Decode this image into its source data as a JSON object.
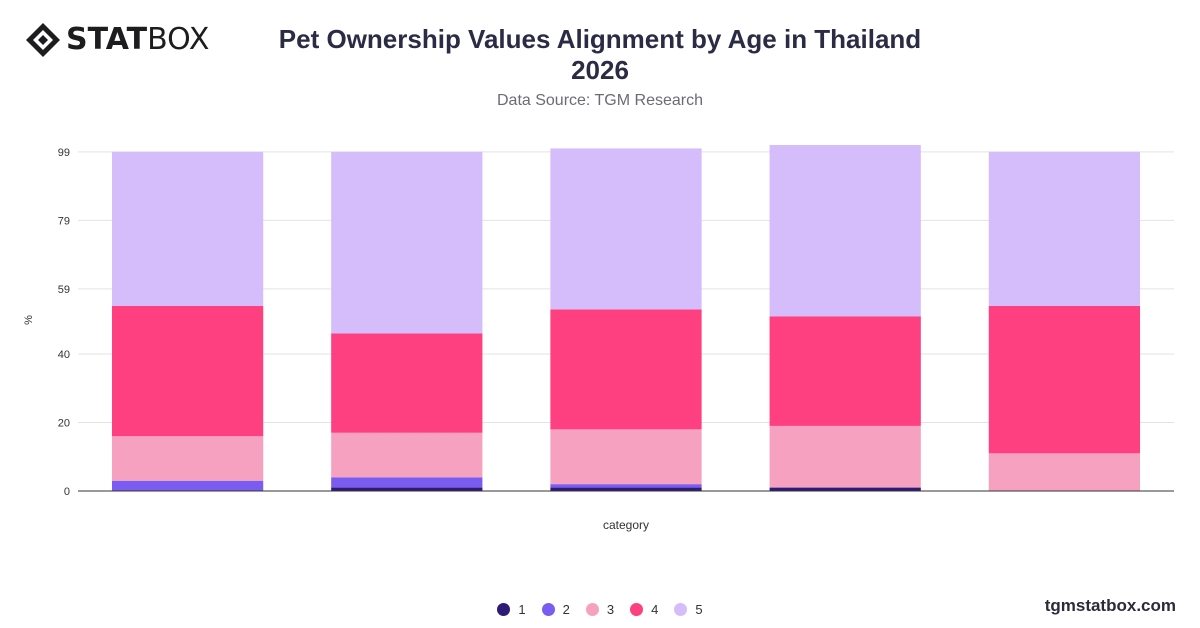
{
  "brand": {
    "logo_bold": "STAT",
    "logo_light": "BOX"
  },
  "header": {
    "title_line1": "Pet Ownership Values Alignment by Age in Thailand",
    "title_line2": "2026",
    "subtitle": "Data Source: TGM Research"
  },
  "footer": {
    "site": "tgmstatbox.com"
  },
  "chart_data": {
    "type": "bar",
    "stacked": true,
    "categories": [
      "",
      "",
      "",
      "",
      ""
    ],
    "xlabel": "category",
    "ylabel": "%",
    "ylim": [
      0,
      101
    ],
    "yticks": [
      0,
      20,
      40,
      59,
      79,
      99
    ],
    "grid": true,
    "legend_position": "bottom",
    "series": [
      {
        "name": "1",
        "color": "#2f1a78",
        "values": [
          0,
          1,
          1,
          1,
          0
        ]
      },
      {
        "name": "2",
        "color": "#7b5cf0",
        "values": [
          3,
          3,
          1,
          0,
          0
        ]
      },
      {
        "name": "3",
        "color": "#f7a1c1",
        "values": [
          13,
          13,
          16,
          18,
          11
        ]
      },
      {
        "name": "4",
        "color": "#fe3f80",
        "values": [
          38,
          29,
          35,
          32,
          43
        ]
      },
      {
        "name": "5",
        "color": "#d4bdfa",
        "values": [
          45,
          53,
          47,
          50,
          45
        ]
      }
    ]
  }
}
